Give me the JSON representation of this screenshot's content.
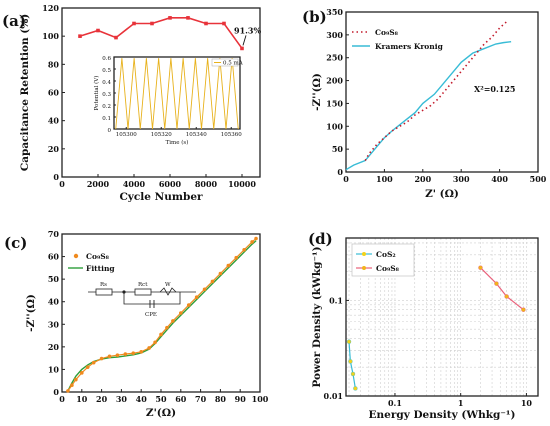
{
  "panels": [
    {
      "label": "(a)"
    },
    {
      "label": "(b)"
    },
    {
      "label": "(c)"
    },
    {
      "label": "(d)"
    }
  ],
  "chart_data": [
    {
      "id": "a",
      "type": "line",
      "xlabel": "Cycle Number",
      "ylabel": "Capacitance Retention (%)",
      "xlim": [
        0,
        11000
      ],
      "ylim": [
        0,
        120
      ],
      "xticks": [
        0,
        2000,
        4000,
        6000,
        8000,
        10000
      ],
      "yticks": [
        0,
        20,
        40,
        60,
        80,
        100,
        120
      ],
      "series": [
        {
          "color": "#e8333a",
          "x": [
            1000,
            2000,
            3000,
            4000,
            5000,
            6000,
            7000,
            8000,
            9000,
            10000
          ],
          "values": [
            100,
            104,
            99,
            109,
            109,
            113,
            113,
            109,
            109,
            91.3
          ]
        }
      ],
      "annotation": "91.3%",
      "inset": {
        "type": "line",
        "xlabel": "Time (s)",
        "ylabel": "Potential (V)",
        "xlim": [
          105293,
          105365
        ],
        "ylim": [
          0,
          0.6
        ],
        "xticks": [
          105300,
          105320,
          105340,
          105360
        ],
        "yticks": [
          0.0,
          0.1,
          0.2,
          0.3,
          0.4,
          0.5,
          0.6
        ],
        "legend": "0.5 mA",
        "color": "#e8b21c",
        "cycles": 10,
        "cycle_start": 105294,
        "cycle_period": 7,
        "vmax": 0.59
      }
    },
    {
      "id": "b",
      "type": "line",
      "xlabel": "Z' (Ω)",
      "ylabel": "-Z''(Ω)",
      "xlim": [
        0,
        500
      ],
      "ylim": [
        0,
        350
      ],
      "xticks": [
        0,
        100,
        200,
        300,
        400,
        500
      ],
      "yticks": [
        0,
        50,
        100,
        150,
        200,
        250,
        300,
        350
      ],
      "annotation": "X²=0.125",
      "series": [
        {
          "name": "Co₉S₈",
          "color": "#c21a2b",
          "style": "dotted",
          "x": [
            50,
            60,
            80,
            100,
            120,
            140,
            160,
            180,
            200,
            220,
            240,
            260,
            280,
            300,
            320,
            340,
            360,
            380,
            400,
            420
          ],
          "values": [
            25,
            40,
            60,
            75,
            90,
            100,
            110,
            125,
            135,
            145,
            160,
            180,
            200,
            220,
            240,
            260,
            280,
            295,
            315,
            330
          ]
        },
        {
          "name": "Kramers Kronig",
          "color": "#38bcd6",
          "style": "solid",
          "x": [
            0,
            20,
            50,
            80,
            100,
            120,
            150,
            180,
            200,
            230,
            250,
            280,
            300,
            330,
            360,
            390,
            410,
            430
          ],
          "values": [
            5,
            15,
            25,
            55,
            75,
            90,
            110,
            130,
            150,
            170,
            190,
            220,
            240,
            260,
            270,
            280,
            283,
            285
          ]
        }
      ]
    },
    {
      "id": "c",
      "type": "line",
      "xlabel": "Z'(Ω)",
      "ylabel": "-Z''(Ω)",
      "xlim": [
        0,
        100
      ],
      "ylim": [
        0,
        70
      ],
      "xticks": [
        0,
        10,
        20,
        30,
        40,
        50,
        60,
        70,
        80,
        90,
        100
      ],
      "yticks": [
        0,
        10,
        20,
        30,
        40,
        50,
        60,
        70
      ],
      "circuit": [
        "Rs",
        "Rct",
        "W",
        "CPE"
      ],
      "series": [
        {
          "name": "Co₉S₈",
          "color": "#f08a1e",
          "style": "markers",
          "x": [
            3,
            5,
            7,
            10,
            13,
            16,
            20,
            24,
            28,
            32,
            36,
            40,
            44,
            47,
            50,
            53,
            56,
            60,
            64,
            68,
            72,
            76,
            80,
            84,
            88,
            92,
            96,
            98
          ],
          "values": [
            0.5,
            3,
            5.5,
            8.5,
            11,
            13,
            14.8,
            15.8,
            16.3,
            16.8,
            17.2,
            17.8,
            19.5,
            22,
            25.5,
            28.5,
            31.5,
            35,
            38.5,
            42,
            45.5,
            49,
            52.5,
            56,
            59.5,
            63,
            66.5,
            68
          ]
        },
        {
          "name": "Fitting",
          "color": "#2e9e3a",
          "style": "solid",
          "x": [
            3,
            5,
            7,
            10,
            13,
            16,
            20,
            24,
            28,
            32,
            36,
            40,
            44,
            47,
            50,
            53,
            56,
            60,
            64,
            68,
            72,
            76,
            80,
            84,
            88,
            92,
            96,
            98
          ],
          "values": [
            0.5,
            4,
            7,
            10,
            12,
            13.5,
            14.6,
            15.2,
            15.5,
            16,
            16.5,
            17.3,
            19,
            21.5,
            24.5,
            27.5,
            30.5,
            34,
            37.5,
            41,
            44.5,
            48,
            51.5,
            55,
            58.5,
            62,
            65.5,
            67
          ]
        }
      ]
    },
    {
      "id": "d",
      "type": "line",
      "scale": "log-log",
      "xlabel": "Energy Density (Whkg⁻¹)",
      "ylabel": "Power Density (kWkg⁻¹)",
      "xlim": [
        0.018,
        15
      ],
      "ylim": [
        0.01,
        0.45
      ],
      "xticks": [
        0.1,
        1,
        10
      ],
      "xtick_labels": [
        "0.1",
        "1",
        "10"
      ],
      "yticks": [
        0.01,
        0.1
      ],
      "ytick_labels": [
        "0.01",
        "0.1"
      ],
      "series": [
        {
          "name": "CoS₂",
          "color": "#38bcd6",
          "marker_color": "#f2d21b",
          "x": [
            0.02,
            0.021,
            0.023,
            0.025
          ],
          "values": [
            0.037,
            0.023,
            0.017,
            0.012
          ]
        },
        {
          "name": "Co₉S₈",
          "color": "#e9607a",
          "marker_color": "#f2b31b",
          "x": [
            2,
            3.5,
            5,
            9
          ],
          "values": [
            0.22,
            0.15,
            0.11,
            0.08
          ]
        }
      ]
    }
  ]
}
